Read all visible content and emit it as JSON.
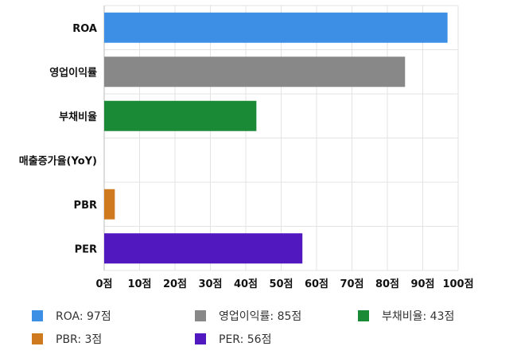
{
  "chart_data": {
    "type": "bar",
    "orientation": "horizontal",
    "categories": [
      "ROA",
      "영업이익률",
      "부채비율",
      "매출증가율(YoY)",
      "PBR",
      "PER"
    ],
    "values": [
      97,
      85,
      43,
      0,
      3,
      56
    ],
    "colors": [
      "#3d8fe6",
      "#888888",
      "#1a8a36",
      "#cccccc",
      "#d07a1f",
      "#5218c0"
    ],
    "xlim": [
      0,
      100
    ],
    "x_ticks": [
      0,
      10,
      20,
      30,
      40,
      50,
      60,
      70,
      80,
      90,
      100
    ],
    "tick_suffix": "점",
    "grid": true,
    "legend_position": "bottom",
    "legend": [
      {
        "label": "ROA: 97점",
        "color": "#3d8fe6"
      },
      {
        "label": "영업이익률: 85점",
        "color": "#888888"
      },
      {
        "label": "부채비율: 43점",
        "color": "#1a8a36"
      },
      {
        "label": "PBR: 3점",
        "color": "#d07a1f"
      },
      {
        "label": "PER: 56점",
        "color": "#5218c0"
      }
    ]
  }
}
